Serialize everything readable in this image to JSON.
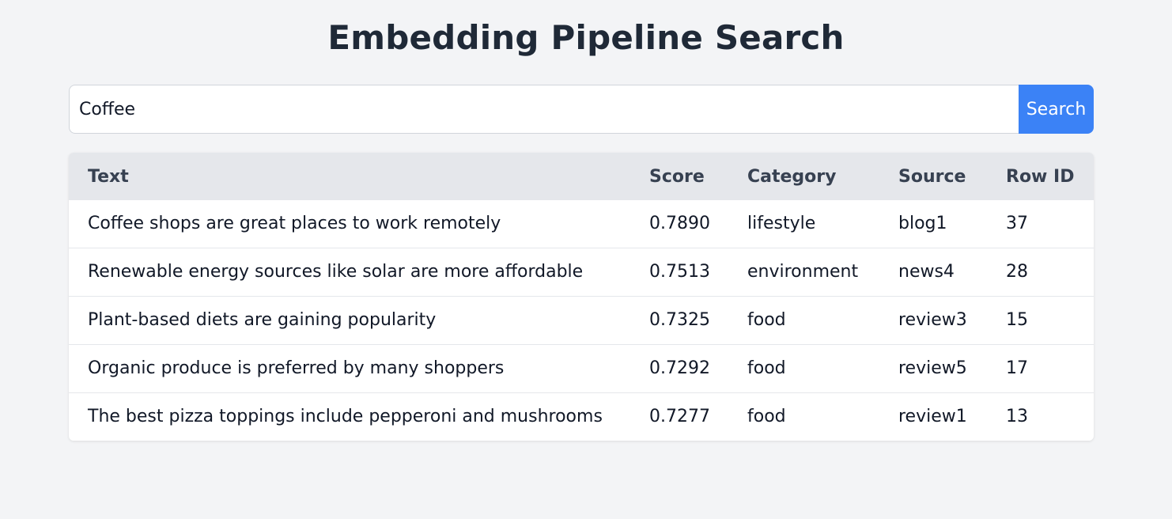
{
  "page": {
    "title": "Embedding Pipeline Search"
  },
  "search": {
    "value": "Coffee",
    "placeholder": "",
    "button_label": "Search"
  },
  "table": {
    "headers": [
      "Text",
      "Score",
      "Category",
      "Source",
      "Row ID"
    ],
    "rows": [
      [
        "Coffee shops are great places to work remotely",
        "0.7890",
        "lifestyle",
        "blog1",
        "37"
      ],
      [
        "Renewable energy sources like solar are more affordable",
        "0.7513",
        "environment",
        "news4",
        "28"
      ],
      [
        "Plant-based diets are gaining popularity",
        "0.7325",
        "food",
        "review3",
        "15"
      ],
      [
        "Organic produce is preferred by many shoppers",
        "0.7292",
        "food",
        "review5",
        "17"
      ],
      [
        "The best pizza toppings include pepperoni and mushrooms",
        "0.7277",
        "food",
        "review1",
        "13"
      ]
    ]
  },
  "colors": {
    "background": "#f3f4f6",
    "accent": "#3b82f6",
    "header_row": "#e5e7eb",
    "title_text": "#1f2937"
  }
}
